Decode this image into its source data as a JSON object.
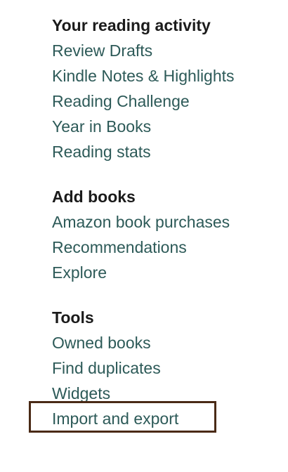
{
  "sections": [
    {
      "heading": "Your reading activity",
      "links": [
        "Review Drafts",
        "Kindle Notes & Highlights",
        "Reading Challenge",
        "Year in Books",
        "Reading stats"
      ]
    },
    {
      "heading": "Add books",
      "links": [
        "Amazon book purchases",
        "Recommendations",
        "Explore"
      ]
    },
    {
      "heading": "Tools",
      "links": [
        "Owned books",
        "Find duplicates",
        "Widgets",
        "Import and export"
      ]
    }
  ],
  "highlight": {
    "target": "Import and export",
    "color": "#4a2a16"
  },
  "colors": {
    "link": "#2d5a58",
    "heading": "#1b1b1b"
  }
}
